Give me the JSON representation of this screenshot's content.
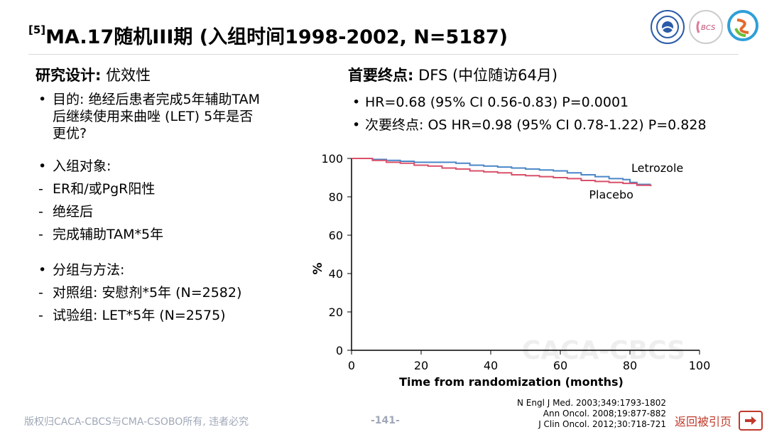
{
  "header": {
    "ref_mark": "[5]",
    "title": "MA.17随机III期 (入组时间1998-2002, N=5187)"
  },
  "logos": [
    "emblem-icon",
    "bcs-logo-icon",
    "swirl-logo-icon"
  ],
  "left": {
    "heading_bold": "研究设计:",
    "heading_rest": " 优效性",
    "purpose": [
      "目的: 绝经后患者完成5年辅助TAM",
      "后继续使用来曲唑 (LET) 5年是否",
      "更优?"
    ],
    "enroll_label": "入组对象:",
    "enroll_items": [
      "ER和/或PgR阳性",
      "绝经后",
      "完成辅助TAM*5年"
    ],
    "group_label": "分组与方法:",
    "group_items": [
      "对照组: 安慰剂*5年 (N=2582)",
      "试验组: LET*5年 (N=2575)"
    ]
  },
  "right": {
    "heading_bold": "首要终点:",
    "heading_rest": " DFS (中位随访64月)",
    "points": [
      "HR=0.68 (95% CI 0.56-0.83) P=0.0001",
      "次要终点: OS HR=0.98 (95% CI 0.78-1.22) P=0.828"
    ]
  },
  "chart_data": {
    "type": "line",
    "xlabel": "Time from randomization (months)",
    "ylabel": "%",
    "xlim": [
      0,
      100
    ],
    "ylim": [
      0,
      100
    ],
    "xticks": [
      0,
      20,
      40,
      60,
      80,
      100
    ],
    "yticks": [
      0,
      20,
      40,
      60,
      80,
      100
    ],
    "watermark": "CACA-CBCS",
    "series": [
      {
        "name": "Letrozole",
        "color": "#4a86c8",
        "x": [
          0,
          6,
          10,
          14,
          18,
          22,
          26,
          30,
          34,
          38,
          42,
          46,
          50,
          54,
          58,
          62,
          66,
          70,
          74,
          78,
          80,
          82,
          86
        ],
        "y": [
          100,
          99.5,
          99,
          98.5,
          98,
          98,
          98,
          97.5,
          96.5,
          96,
          95.5,
          95,
          94.5,
          94,
          93.5,
          92.5,
          91.5,
          90.5,
          89.5,
          89,
          87.5,
          86.5,
          86.5
        ]
      },
      {
        "name": "Placebo",
        "color": "#d9506a",
        "x": [
          0,
          6,
          10,
          14,
          18,
          22,
          26,
          30,
          34,
          38,
          42,
          46,
          50,
          54,
          58,
          62,
          66,
          70,
          74,
          78,
          82,
          86
        ],
        "y": [
          100,
          99,
          98,
          97.5,
          96.5,
          96,
          95,
          94.5,
          93.5,
          93,
          92.5,
          91.5,
          91,
          90.5,
          90,
          89.5,
          88.5,
          88,
          87.5,
          87,
          86,
          85.5
        ]
      }
    ]
  },
  "references": [
    "N Engl J Med. 2003;349:1793-1802",
    "Ann Oncol. 2008;19:877-882",
    "J Clin Oncol. 2012;30:718-721"
  ],
  "footer": {
    "copyright": "版权归CACA-CBCS与CMA-CSOBO所有, 违者必究",
    "page": "-141-",
    "back_label": "返回被引页"
  }
}
